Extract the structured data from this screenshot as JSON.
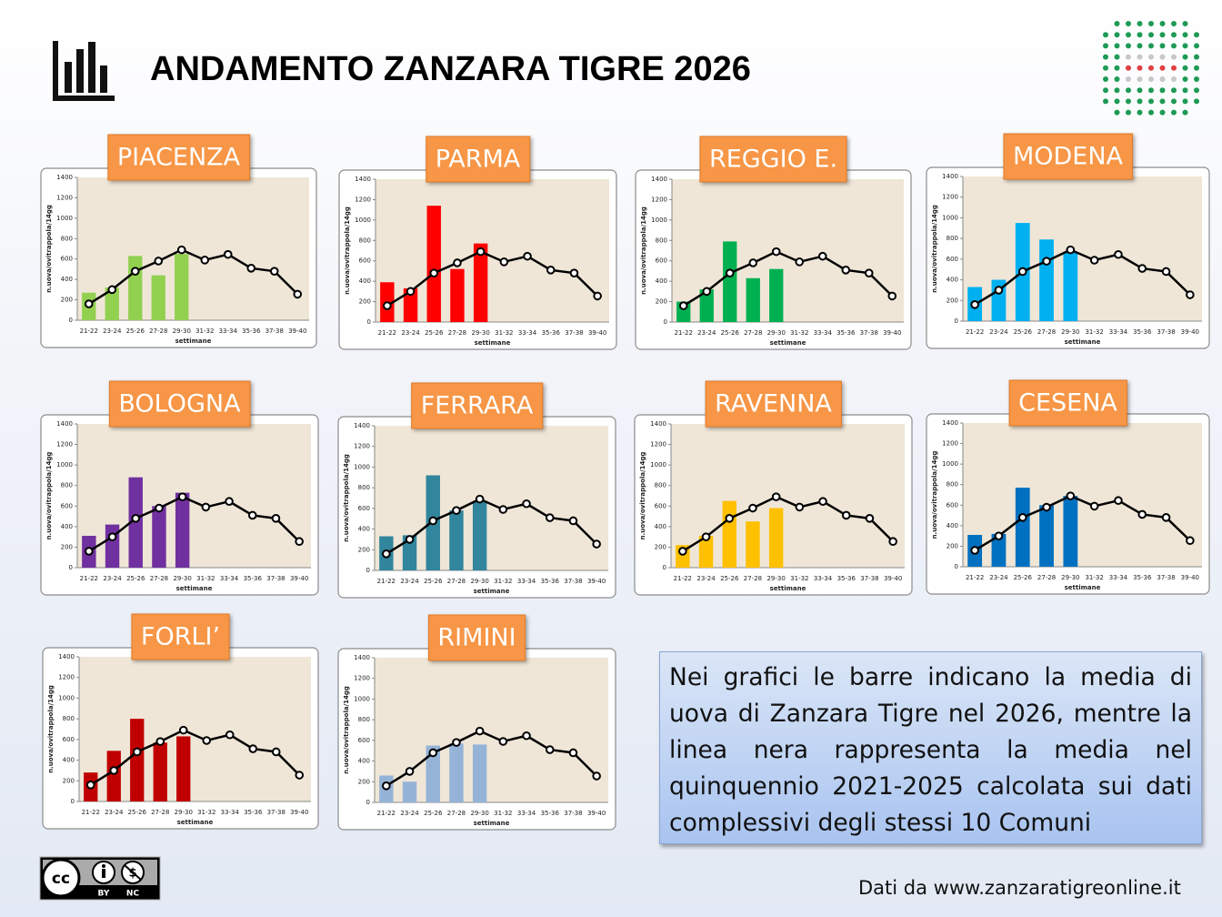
{
  "header": {
    "title": "ANDAMENTO ZANZARA TIGRE 2026"
  },
  "chart_data": [
    {
      "type": "bar",
      "title": "PIACENZA",
      "x_label": "settimane",
      "y_label": "n.uova/ovitrappola/14gg",
      "categories": [
        "21-22",
        "23-24",
        "25-26",
        "27-28",
        "29-30",
        "31-32",
        "33-34",
        "35-36",
        "37-38",
        "39-40"
      ],
      "series": [
        {
          "type": "bar",
          "color": "#92d050",
          "values": [
            270,
            320,
            630,
            440,
            650,
            null,
            null,
            null,
            null,
            null
          ]
        },
        {
          "type": "line",
          "color": "#000000",
          "values": [
            160,
            300,
            480,
            580,
            690,
            590,
            645,
            510,
            480,
            255
          ]
        }
      ],
      "ylim": [
        0,
        1400
      ],
      "yticks": [
        0,
        200,
        400,
        600,
        800,
        1000,
        1200,
        1400
      ]
    },
    {
      "type": "bar",
      "title": "PARMA",
      "x_label": "settimane",
      "y_label": "n.uova/ovitrappola/14gg",
      "categories": [
        "21-22",
        "23-24",
        "25-26",
        "27-28",
        "29-30",
        "31-32",
        "33-34",
        "35-36",
        "37-38",
        "39-40"
      ],
      "series": [
        {
          "type": "bar",
          "color": "#ff0000",
          "values": [
            390,
            330,
            1140,
            520,
            770,
            null,
            null,
            null,
            null,
            null
          ]
        },
        {
          "type": "line",
          "color": "#000000",
          "values": [
            160,
            300,
            480,
            580,
            690,
            590,
            645,
            510,
            480,
            255
          ]
        }
      ],
      "ylim": [
        0,
        1400
      ],
      "yticks": [
        0,
        200,
        400,
        600,
        800,
        1000,
        1200,
        1400
      ]
    },
    {
      "type": "bar",
      "title": "REGGIO E.",
      "x_label": "settimane",
      "y_label": "n.uova/ovitrappola/14gg",
      "categories": [
        "21-22",
        "23-24",
        "25-26",
        "27-28",
        "29-30",
        "31-32",
        "33-34",
        "35-36",
        "37-38",
        "39-40"
      ],
      "series": [
        {
          "type": "bar",
          "color": "#00b050",
          "values": [
            200,
            320,
            790,
            430,
            520,
            null,
            null,
            null,
            null,
            null
          ]
        },
        {
          "type": "line",
          "color": "#000000",
          "values": [
            160,
            300,
            480,
            580,
            690,
            590,
            645,
            510,
            480,
            255
          ]
        }
      ],
      "ylim": [
        0,
        1400
      ],
      "yticks": [
        0,
        200,
        400,
        600,
        800,
        1000,
        1200,
        1400
      ]
    },
    {
      "type": "bar",
      "title": "MODENA",
      "x_label": "settimane",
      "y_label": "n.uova/ovitrappola/14gg",
      "categories": [
        "21-22",
        "23-24",
        "25-26",
        "27-28",
        "29-30",
        "31-32",
        "33-34",
        "35-36",
        "37-38",
        "39-40"
      ],
      "series": [
        {
          "type": "bar",
          "color": "#00b0f0",
          "values": [
            330,
            400,
            950,
            790,
            670,
            null,
            null,
            null,
            null,
            null
          ]
        },
        {
          "type": "line",
          "color": "#000000",
          "values": [
            160,
            300,
            480,
            580,
            690,
            590,
            645,
            510,
            480,
            255
          ]
        }
      ],
      "ylim": [
        0,
        1400
      ],
      "yticks": [
        0,
        200,
        400,
        600,
        800,
        1000,
        1200,
        1400
      ]
    },
    {
      "type": "bar",
      "title": "BOLOGNA",
      "x_label": "settimane",
      "y_label": "n.uova/ovitrappola/14gg",
      "categories": [
        "21-22",
        "23-24",
        "25-26",
        "27-28",
        "29-30",
        "31-32",
        "33-34",
        "35-36",
        "37-38",
        "39-40"
      ],
      "series": [
        {
          "type": "bar",
          "color": "#7030a0",
          "values": [
            310,
            420,
            880,
            600,
            730,
            null,
            null,
            null,
            null,
            null
          ]
        },
        {
          "type": "line",
          "color": "#000000",
          "values": [
            160,
            300,
            480,
            580,
            690,
            590,
            645,
            510,
            480,
            255
          ]
        }
      ],
      "ylim": [
        0,
        1400
      ],
      "yticks": [
        0,
        200,
        400,
        600,
        800,
        1000,
        1200,
        1400
      ]
    },
    {
      "type": "bar",
      "title": "FERRARA",
      "x_label": "settimane",
      "y_label": "n.uova/ovitrappola/14gg",
      "categories": [
        "21-22",
        "23-24",
        "25-26",
        "27-28",
        "29-30",
        "31-32",
        "33-34",
        "35-36",
        "37-38",
        "39-40"
      ],
      "series": [
        {
          "type": "bar",
          "color": "#31859c",
          "values": [
            330,
            340,
            920,
            580,
            660,
            null,
            null,
            null,
            null,
            null
          ]
        },
        {
          "type": "line",
          "color": "#000000",
          "values": [
            160,
            300,
            480,
            580,
            690,
            590,
            645,
            510,
            480,
            255
          ]
        }
      ],
      "ylim": [
        0,
        1400
      ],
      "yticks": [
        0,
        200,
        400,
        600,
        800,
        1000,
        1200,
        1400
      ]
    },
    {
      "type": "bar",
      "title": "RAVENNA",
      "x_label": "settimane",
      "y_label": "n.uova/ovitrappola/14gg",
      "categories": [
        "21-22",
        "23-24",
        "25-26",
        "27-28",
        "29-30",
        "31-32",
        "33-34",
        "35-36",
        "37-38",
        "39-40"
      ],
      "series": [
        {
          "type": "bar",
          "color": "#ffc000",
          "values": [
            220,
            310,
            650,
            450,
            580,
            null,
            null,
            null,
            null,
            null
          ]
        },
        {
          "type": "line",
          "color": "#000000",
          "values": [
            160,
            300,
            480,
            580,
            690,
            590,
            645,
            510,
            480,
            255
          ]
        }
      ],
      "ylim": [
        0,
        1400
      ],
      "yticks": [
        0,
        200,
        400,
        600,
        800,
        1000,
        1200,
        1400
      ]
    },
    {
      "type": "bar",
      "title": "CESENA",
      "x_label": "settimane",
      "y_label": "n.uova/ovitrappola/14gg",
      "categories": [
        "21-22",
        "23-24",
        "25-26",
        "27-28",
        "29-30",
        "31-32",
        "33-34",
        "35-36",
        "37-38",
        "39-40"
      ],
      "series": [
        {
          "type": "bar",
          "color": "#0070c0",
          "values": [
            310,
            320,
            770,
            600,
            690,
            null,
            null,
            null,
            null,
            null
          ]
        },
        {
          "type": "line",
          "color": "#000000",
          "values": [
            160,
            300,
            480,
            580,
            690,
            590,
            645,
            510,
            480,
            255
          ]
        }
      ],
      "ylim": [
        0,
        1400
      ],
      "yticks": [
        0,
        200,
        400,
        600,
        800,
        1000,
        1200,
        1400
      ]
    },
    {
      "type": "bar",
      "title": "FORLI’",
      "x_label": "settimane",
      "y_label": "n.uova/ovitrappola/14gg",
      "categories": [
        "21-22",
        "23-24",
        "25-26",
        "27-28",
        "29-30",
        "31-32",
        "33-34",
        "35-36",
        "37-38",
        "39-40"
      ],
      "series": [
        {
          "type": "bar",
          "color": "#c00000",
          "values": [
            280,
            490,
            800,
            570,
            630,
            null,
            null,
            null,
            null,
            null
          ]
        },
        {
          "type": "line",
          "color": "#000000",
          "values": [
            160,
            300,
            480,
            580,
            690,
            590,
            645,
            510,
            480,
            255
          ]
        }
      ],
      "ylim": [
        0,
        1400
      ],
      "yticks": [
        0,
        200,
        400,
        600,
        800,
        1000,
        1200,
        1400
      ]
    },
    {
      "type": "bar",
      "title": "RIMINI",
      "x_label": "settimane",
      "y_label": "n.uova/ovitrappola/14gg",
      "categories": [
        "21-22",
        "23-24",
        "25-26",
        "27-28",
        "29-30",
        "31-32",
        "33-34",
        "35-36",
        "37-38",
        "39-40"
      ],
      "series": [
        {
          "type": "bar",
          "color": "#95b3d7",
          "values": [
            260,
            200,
            550,
            570,
            560,
            null,
            null,
            null,
            null,
            null
          ]
        },
        {
          "type": "line",
          "color": "#000000",
          "values": [
            160,
            300,
            480,
            580,
            690,
            590,
            645,
            510,
            480,
            255
          ]
        }
      ],
      "ylim": [
        0,
        1400
      ],
      "yticks": [
        0,
        200,
        400,
        600,
        800,
        1000,
        1200,
        1400
      ]
    }
  ],
  "note": "Nei grafici le barre indicano la media di uova di Zanzara Tigre nel 2026, mentre la linea nera rappresenta la media nel quinquennio 2021-2025 calcolata sui dati complessivi degli stessi 10 Comuni",
  "license": {
    "by": "BY",
    "nc": "NC"
  },
  "footer": "Dati da www.zanzaratigreonline.it"
}
